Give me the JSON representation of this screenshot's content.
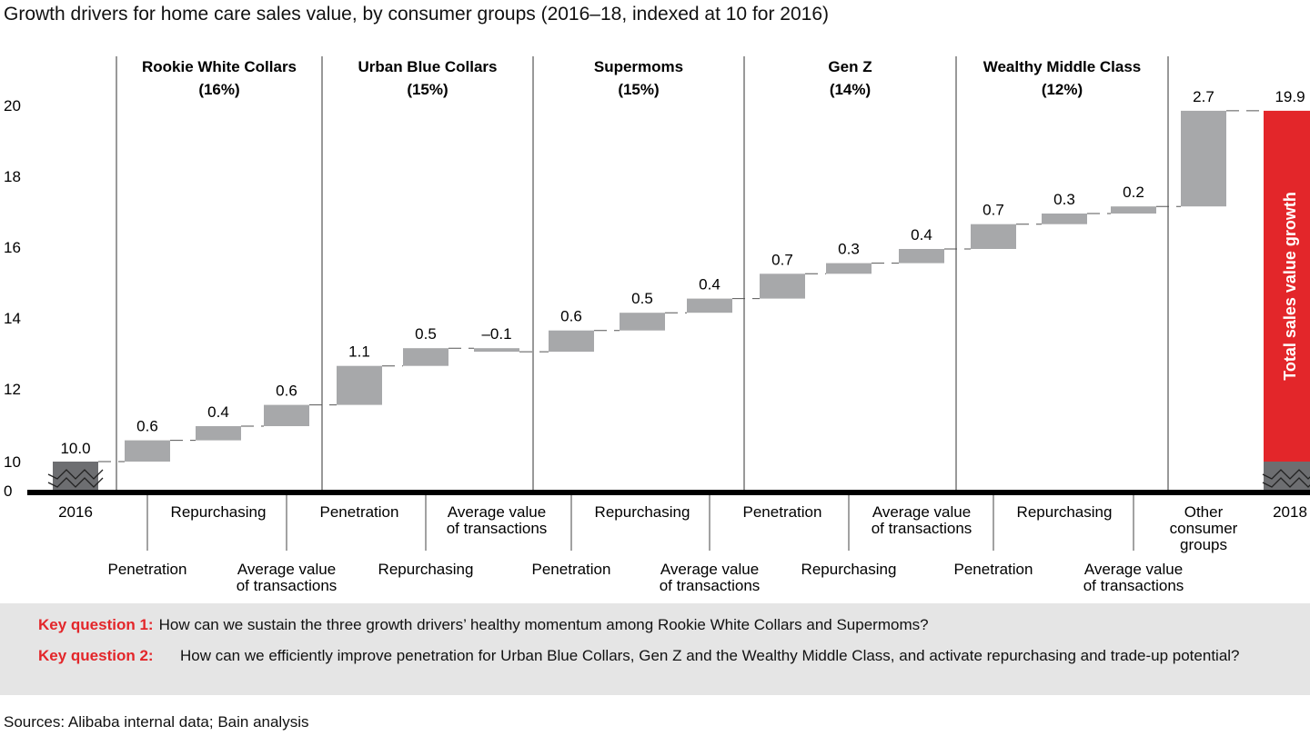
{
  "title": "Growth drivers for home care sales value, by consumer groups (2016–18, indexed at 10 for 2016)",
  "chart_data": {
    "type": "waterfall",
    "title": "Growth drivers for home care sales value, by consumer groups (2016–18, indexed at 10 for 2016)",
    "y_ticks": [
      "0",
      "10",
      "12",
      "14",
      "16",
      "18",
      "20"
    ],
    "ylim": [
      10,
      20
    ],
    "axis_break": true,
    "start": {
      "label": "2016",
      "value": 10.0,
      "value_label": "10.0"
    },
    "groups": [
      {
        "name": "Rookie White Collars",
        "share": "(16%)",
        "steps": [
          {
            "label": "Penetration",
            "value": 0.6,
            "value_label": "0.6"
          },
          {
            "label": "Repurchasing",
            "value": 0.4,
            "value_label": "0.4"
          },
          {
            "label": "Average value of transactions",
            "value": 0.6,
            "value_label": "0.6"
          }
        ]
      },
      {
        "name": "Urban Blue Collars",
        "share": "(15%)",
        "steps": [
          {
            "label": "Penetration",
            "value": 1.1,
            "value_label": "1.1"
          },
          {
            "label": "Repurchasing",
            "value": 0.5,
            "value_label": "0.5"
          },
          {
            "label": "Average value of transactions",
            "value": -0.1,
            "value_label": "–0.1"
          }
        ]
      },
      {
        "name": "Supermoms",
        "share": "(15%)",
        "steps": [
          {
            "label": "Penetration",
            "value": 0.6,
            "value_label": "0.6"
          },
          {
            "label": "Repurchasing",
            "value": 0.5,
            "value_label": "0.5"
          },
          {
            "label": "Average value of transactions",
            "value": 0.4,
            "value_label": "0.4"
          }
        ]
      },
      {
        "name": "Gen Z",
        "share": "(14%)",
        "steps": [
          {
            "label": "Penetration",
            "value": 0.7,
            "value_label": "0.7"
          },
          {
            "label": "Repurchasing",
            "value": 0.3,
            "value_label": "0.3"
          },
          {
            "label": "Average value of transactions",
            "value": 0.4,
            "value_label": "0.4"
          }
        ]
      },
      {
        "name": "Wealthy Middle Class",
        "share": "(12%)",
        "steps": [
          {
            "label": "Penetration",
            "value": 0.7,
            "value_label": "0.7"
          },
          {
            "label": "Repurchasing",
            "value": 0.3,
            "value_label": "0.3"
          },
          {
            "label": "Average value of transactions",
            "value": 0.2,
            "value_label": "0.2"
          }
        ]
      }
    ],
    "other": {
      "label": "Other consumer groups",
      "value": 2.7,
      "value_label": "2.7"
    },
    "end": {
      "label": "2018",
      "value": 19.9,
      "value_label": "19.9",
      "bar_text": "Total sales value growth"
    },
    "colors": {
      "step": "#a7a8aa",
      "base": "#6d6e71",
      "total": "#e3262a"
    }
  },
  "key_questions": [
    {
      "label": "Key question 1:",
      "text": "How can we sustain the three growth drivers’ healthy momentum among Rookie White Collars and Supermoms?"
    },
    {
      "label": "Key question 2:",
      "text": "How can we efficiently improve penetration for Urban Blue Collars, Gen Z and the Wealthy Middle Class, and activate repurchasing and trade-up potential?"
    }
  ],
  "sources": "Sources: Alibaba internal data; Bain analysis"
}
